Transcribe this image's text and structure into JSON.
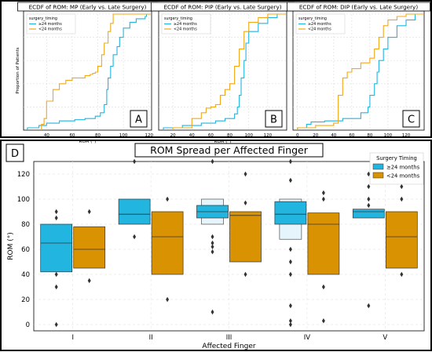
{
  "chart_data": [
    {
      "panel": "A",
      "type": "line",
      "step": "ecdf",
      "title": "ECDF of ROM: MP (Early vs. Late Surgery)",
      "xlabel": "ROM (°)",
      "ylabel": "Proportion of Patients",
      "xlim": [
        22,
        122
      ],
      "ylim": [
        0,
        1
      ],
      "xticks": [
        "40",
        "60",
        "80",
        "100",
        "120"
      ],
      "grid": true,
      "legend": {
        "title": "surgery_timing",
        "placement": "top-left",
        "entries": [
          "≥24 months",
          "<24 months"
        ]
      },
      "series": [
        {
          "name": "≥24 months",
          "color": "#22b5e0",
          "points": [
            [
              25,
              0.02
            ],
            [
              34,
              0.04
            ],
            [
              40,
              0.06
            ],
            [
              50,
              0.08
            ],
            [
              62,
              0.09
            ],
            [
              70,
              0.1
            ],
            [
              78,
              0.12
            ],
            [
              82,
              0.15
            ],
            [
              85,
              0.22
            ],
            [
              87,
              0.35
            ],
            [
              88,
              0.45
            ],
            [
              90,
              0.55
            ],
            [
              92,
              0.65
            ],
            [
              95,
              0.72
            ],
            [
              97,
              0.8
            ],
            [
              100,
              0.88
            ],
            [
              105,
              0.93
            ],
            [
              110,
              0.96
            ],
            [
              117,
              0.98
            ],
            [
              118,
              1.0
            ]
          ]
        },
        {
          "name": "<24 months",
          "color": "#f0a818",
          "points": [
            [
              36,
              0.05
            ],
            [
              38,
              0.1
            ],
            [
              40,
              0.25
            ],
            [
              45,
              0.35
            ],
            [
              50,
              0.4
            ],
            [
              55,
              0.43
            ],
            [
              60,
              0.45
            ],
            [
              66,
              0.45
            ],
            [
              70,
              0.47
            ],
            [
              74,
              0.48
            ],
            [
              76,
              0.49
            ],
            [
              78,
              0.5
            ],
            [
              80,
              0.55
            ],
            [
              83,
              0.65
            ],
            [
              85,
              0.75
            ],
            [
              88,
              0.85
            ],
            [
              90,
              0.92
            ],
            [
              92,
              1.0
            ]
          ]
        }
      ]
    },
    {
      "panel": "B",
      "type": "line",
      "step": "ecdf",
      "title": "ECDF of ROM: PIP (Early vs. Late Surgery)",
      "xlabel": "ROM (°)",
      "ylabel": "",
      "xlim": [
        5,
        140
      ],
      "ylim": [
        0,
        1
      ],
      "xticks": [
        "20",
        "40",
        "60",
        "80",
        "100",
        "120"
      ],
      "grid": true,
      "legend": {
        "title": "surgery_timing",
        "placement": "top-left",
        "entries": [
          "≥24 months",
          "<24 months"
        ]
      },
      "series": [
        {
          "name": "≥24 months",
          "color": "#22b5e0",
          "points": [
            [
              10,
              0.02
            ],
            [
              30,
              0.04
            ],
            [
              50,
              0.06
            ],
            [
              65,
              0.08
            ],
            [
              75,
              0.1
            ],
            [
              85,
              0.14
            ],
            [
              88,
              0.2
            ],
            [
              90,
              0.3
            ],
            [
              92,
              0.45
            ],
            [
              95,
              0.6
            ],
            [
              97,
              0.75
            ],
            [
              100,
              0.85
            ],
            [
              110,
              0.92
            ],
            [
              120,
              0.97
            ],
            [
              130,
              1.0
            ]
          ]
        },
        {
          "name": "<24 months",
          "color": "#f0a818",
          "points": [
            [
              20,
              0.02
            ],
            [
              40,
              0.1
            ],
            [
              50,
              0.15
            ],
            [
              55,
              0.19
            ],
            [
              60,
              0.2
            ],
            [
              65,
              0.22
            ],
            [
              70,
              0.3
            ],
            [
              75,
              0.35
            ],
            [
              80,
              0.4
            ],
            [
              85,
              0.55
            ],
            [
              90,
              0.7
            ],
            [
              95,
              0.85
            ],
            [
              100,
              0.93
            ],
            [
              110,
              0.97
            ],
            [
              120,
              1.0
            ]
          ]
        }
      ]
    },
    {
      "panel": "C",
      "type": "line",
      "step": "ecdf",
      "title": "ECDF of ROM: DIP (Early vs. Late Surgery)",
      "xlabel": "",
      "ylabel": "",
      "xlim": [
        -5,
        140
      ],
      "ylim": [
        0,
        1
      ],
      "xticks": [
        "0",
        "20",
        "40",
        "60",
        "80",
        "100",
        "120"
      ],
      "grid": true,
      "legend": {
        "title": "surgery_timing",
        "placement": "top-left",
        "entries": [
          "≥24 months",
          "<24 months"
        ]
      },
      "series": [
        {
          "name": "≥24 months",
          "color": "#22b5e0",
          "points": [
            [
              0,
              0.02
            ],
            [
              10,
              0.05
            ],
            [
              15,
              0.07
            ],
            [
              30,
              0.08
            ],
            [
              50,
              0.1
            ],
            [
              70,
              0.15
            ],
            [
              78,
              0.2
            ],
            [
              80,
              0.3
            ],
            [
              85,
              0.4
            ],
            [
              88,
              0.5
            ],
            [
              90,
              0.6
            ],
            [
              95,
              0.7
            ],
            [
              100,
              0.8
            ],
            [
              110,
              0.9
            ],
            [
              120,
              0.95
            ],
            [
              130,
              1.0
            ]
          ]
        },
        {
          "name": "<24 months",
          "color": "#f0a818",
          "points": [
            [
              0,
              0.02
            ],
            [
              20,
              0.04
            ],
            [
              40,
              0.06
            ],
            [
              45,
              0.3
            ],
            [
              50,
              0.45
            ],
            [
              55,
              0.5
            ],
            [
              60,
              0.53
            ],
            [
              70,
              0.58
            ],
            [
              80,
              0.62
            ],
            [
              85,
              0.7
            ],
            [
              90,
              0.8
            ],
            [
              95,
              0.9
            ],
            [
              100,
              0.95
            ],
            [
              110,
              0.98
            ],
            [
              120,
              1.0
            ]
          ]
        }
      ]
    },
    {
      "panel": "D",
      "type": "boxen",
      "title": "ROM Spread per Affected Finger",
      "xlabel": "Affected Finger",
      "ylabel": "ROM (°)",
      "ylim": [
        -5,
        130
      ],
      "yticks": [
        "0",
        "20",
        "40",
        "60",
        "80",
        "100",
        "120"
      ],
      "categories": [
        "I",
        "II",
        "III",
        "IV",
        "V"
      ],
      "grid": true,
      "legend": {
        "title": "Surgery Timing",
        "placement": "top-right",
        "entries": [
          "≥24 months",
          "<24 months"
        ]
      },
      "series": [
        {
          "name": "≥24 months",
          "color": "#22b5e0",
          "boxes": [
            {
              "q1": 42,
              "median": 65,
              "q3": 80,
              "extras": [],
              "outliers": [
                0,
                30,
                40,
                85,
                90
              ]
            },
            {
              "q1": 80,
              "median": 88,
              "q3": 100,
              "extras": [],
              "outliers": [
                70,
                130
              ]
            },
            {
              "q1": 85,
              "median": 90,
              "q3": 95,
              "extras": [
                [
                  80,
                  100
                ]
              ],
              "outliers": [
                10,
                58,
                62,
                65,
                70,
                130
              ]
            },
            {
              "q1": 80,
              "median": 88,
              "q3": 98,
              "extras": [
                [
                  68,
                  100
                ]
              ],
              "outliers": [
                0,
                3,
                15,
                40,
                50,
                60,
                115,
                130
              ]
            },
            {
              "q1": 85,
              "median": 90,
              "q3": 92,
              "extras": [],
              "outliers": [
                15,
                95,
                100,
                110,
                120
              ]
            }
          ]
        },
        {
          "name": "<24 months",
          "color": "#d99302",
          "boxes": [
            {
              "q1": 45,
              "median": 60,
              "q3": 78,
              "extras": [],
              "outliers": [
                35,
                90
              ]
            },
            {
              "q1": 40,
              "median": 70,
              "q3": 90,
              "extras": [],
              "outliers": [
                20,
                100
              ]
            },
            {
              "q1": 50,
              "median": 87,
              "q3": 90,
              "extras": [],
              "outliers": [
                40,
                97,
                120
              ]
            },
            {
              "q1": 40,
              "median": 80,
              "q3": 89,
              "extras": [],
              "outliers": [
                3,
                30,
                100,
                105
              ]
            },
            {
              "q1": 45,
              "median": 70,
              "q3": 90,
              "extras": [],
              "outliers": [
                40,
                100,
                110,
                120
              ]
            }
          ]
        }
      ]
    }
  ],
  "panel_labels": [
    "A",
    "B",
    "C",
    "D"
  ]
}
